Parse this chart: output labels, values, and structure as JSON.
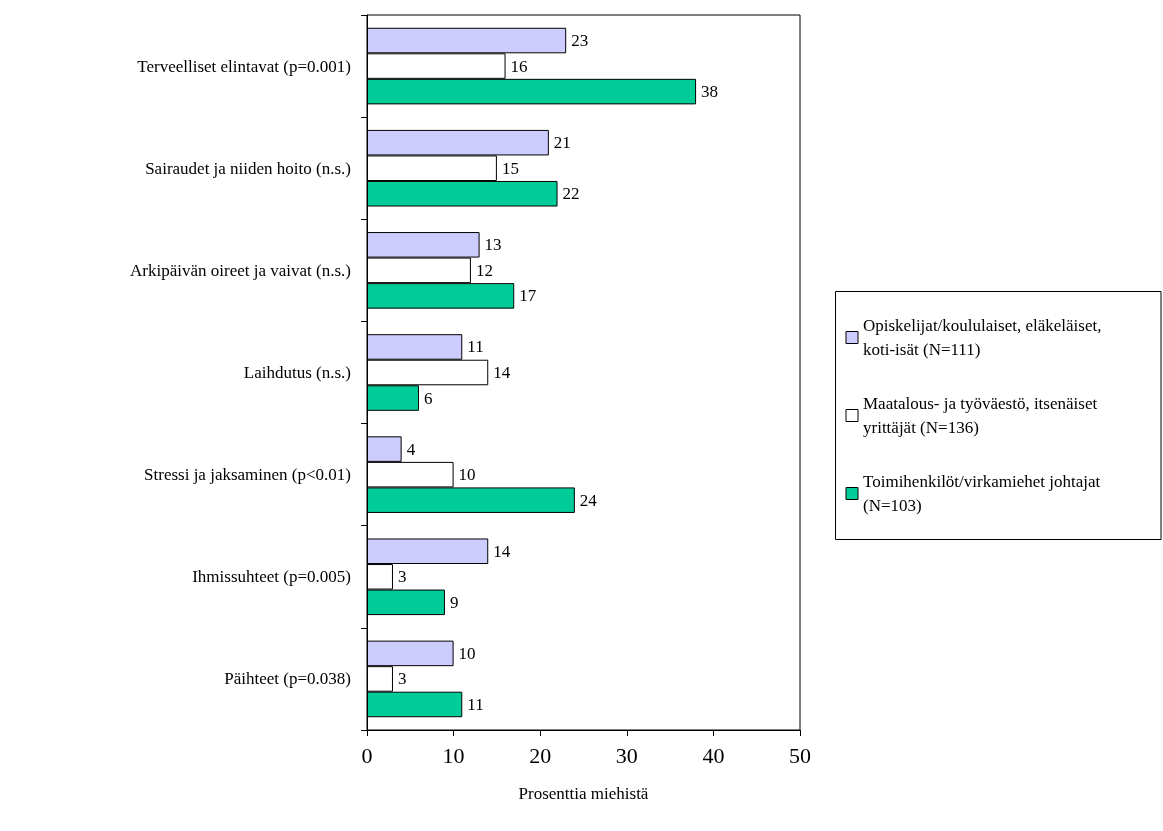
{
  "chart_data": {
    "type": "bar",
    "orientation": "horizontal",
    "xlabel": "Prosenttia miehistä",
    "categories": [
      "Terveelliset elintavat (p=0.001)",
      "Sairaudet ja niiden hoito (n.s.)",
      "Arkipäivän oireet ja vaivat (n.s.)",
      "Laihdutus (n.s.)",
      "Stressi ja jaksaminen (p<0.01)",
      "Ihmissuhteet (p=0.005)",
      "Päihteet (p=0.038)"
    ],
    "series": [
      {
        "name": "Opiskelijat/koululaiset, eläkeläiset, koti-isät (N=111)",
        "color": "#ccccff",
        "values": [
          23,
          21,
          13,
          11,
          4,
          14,
          10
        ]
      },
      {
        "name": "Maatalous- ja työväestö, itsenäiset yrittäjät (N=136)",
        "color": "#ffffff",
        "values": [
          16,
          15,
          12,
          14,
          10,
          3,
          3
        ]
      },
      {
        "name": "Toimihenkilöt/virkamiehet johtajat (N=103)",
        "color": "#00cc99",
        "values": [
          38,
          22,
          17,
          6,
          24,
          9,
          11
        ]
      }
    ],
    "xlim": [
      0,
      50
    ],
    "xticks": [
      0,
      10,
      20,
      30,
      40,
      50
    ],
    "data_labels": true,
    "grid": false,
    "legend": "right"
  }
}
